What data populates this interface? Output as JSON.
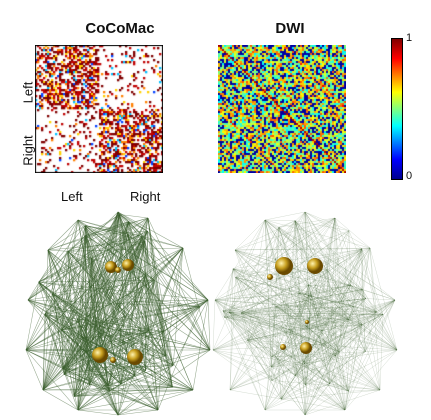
{
  "panels": {
    "left_title": "CoCoMac",
    "right_title": "DWI",
    "row_label_top": "Left",
    "row_label_bottom": "Right",
    "col_label_left": "Left",
    "col_label_right": "Right"
  },
  "colorbar": {
    "max_label": "1",
    "min_label": "0",
    "colors": [
      "#00008f",
      "#0000ff",
      "#00ffff",
      "#ffff00",
      "#ff0000",
      "#800000"
    ]
  },
  "matrix_colors": {
    "cocomac_palette": [
      "#ffffff",
      "#7f0000",
      "#c00000",
      "#ff8000",
      "#ffd000",
      "#00c0ff",
      "#0040ff",
      "#80ff80"
    ],
    "dwi_base": "#00008f"
  },
  "graphs": {
    "edge_color": "#3b5f2e",
    "node_color": "#c8a020"
  }
}
